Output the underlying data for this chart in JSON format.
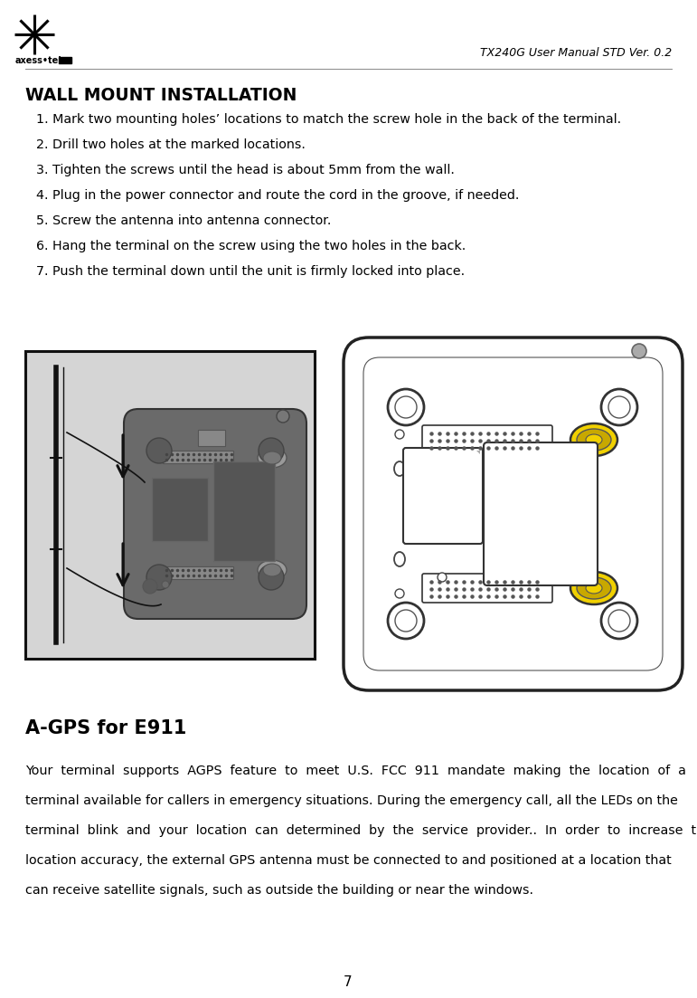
{
  "header_text": "TX240G User Manual STD Ver. 0.2",
  "section_title": "WALL MOUNT INSTALLATION",
  "steps": [
    "1. Mark two mounting holes’ locations to match the screw hole in the back of the terminal.",
    "2. Drill two holes at the marked locations.",
    "3. Tighten the screws until the head is about 5mm from the wall.",
    "4. Plug in the power connector and route the cord in the groove, if needed.",
    "5. Screw the antenna into antenna connector.",
    "6. Hang the terminal on the screw using the two holes in the back.",
    "7. Push the terminal down until the unit is firmly locked into place."
  ],
  "section2_title": "A-GPS for E911",
  "section2_body": [
    "Your  terminal  supports  AGPS  feature  to  meet  U.S.  FCC  911  mandate  making  the  location  of  a",
    "terminal available for callers in emergency situations. During the emergency call, all the LEDs on the",
    "terminal  blink  and  your  location  can  determined  by  the  service  provider..  In  order  to  increase  the",
    "location accuracy, the external GPS antenna must be connected to and positioned at a location that",
    "can receive satellite signals, such as outside the building or near the windows."
  ],
  "page_number": "7",
  "bg_color": "#ffffff",
  "text_color": "#000000"
}
